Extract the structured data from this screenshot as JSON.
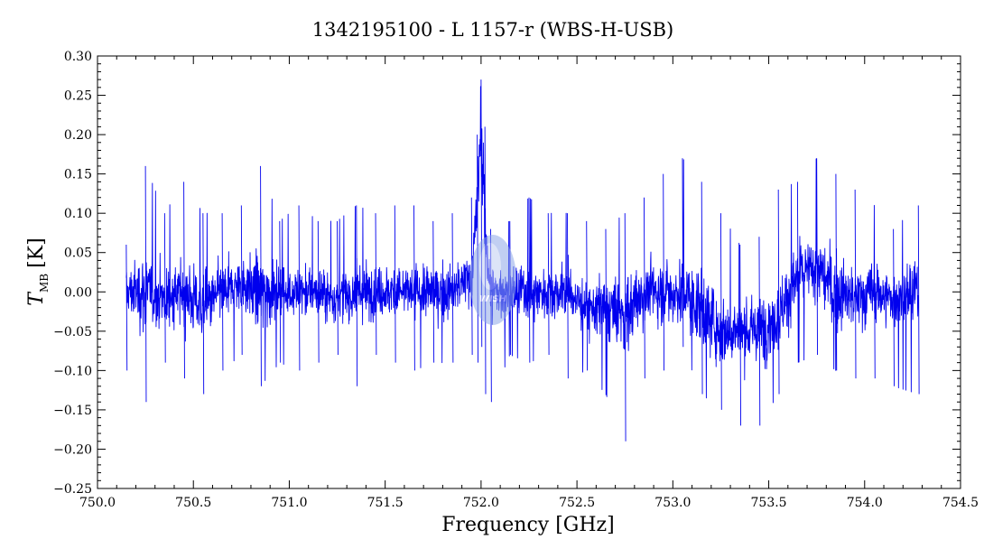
{
  "chart_data": {
    "type": "line",
    "title": "1342195100 - L 1157-r (WBS-H-USB)",
    "xlabel": "Frequency [GHz]",
    "ylabel_main": "T",
    "ylabel_sub": "MB",
    "ylabel_unit": "[K]",
    "xlim": [
      750.0,
      754.5
    ],
    "ylim": [
      -0.25,
      0.3
    ],
    "x_ticks": [
      750.0,
      750.5,
      751.0,
      751.5,
      752.0,
      752.5,
      753.0,
      753.5,
      754.0,
      754.5
    ],
    "x_tick_labels": [
      "750.0",
      "750.5",
      "751.0",
      "751.5",
      "752.0",
      "752.5",
      "753.0",
      "753.5",
      "754.0",
      "754.5"
    ],
    "y_ticks": [
      0.3,
      0.25,
      0.2,
      0.15,
      0.1,
      0.05,
      0.0,
      -0.05,
      -0.1,
      -0.15,
      -0.2,
      -0.25
    ],
    "y_tick_labels": [
      "0.30",
      "0.25",
      "0.20",
      "0.15",
      "0.10",
      "0.05",
      "0.00",
      "−0.05",
      "−0.10",
      "−0.15",
      "−0.20",
      "−0.25"
    ],
    "grid": false,
    "series": [
      {
        "color": "#0000ee",
        "x": [
          750.15,
          750.25,
          750.35,
          750.45,
          750.55,
          750.65,
          750.75,
          750.85,
          750.95,
          751.05,
          751.15,
          751.25,
          751.35,
          751.45,
          751.55,
          751.65,
          751.75,
          751.85,
          751.95,
          751.98,
          752.0,
          752.02,
          752.05,
          752.15,
          752.25,
          752.35,
          752.45,
          752.55,
          752.65,
          752.75,
          752.85,
          752.95,
          753.05,
          753.15,
          753.25,
          753.35,
          753.45,
          753.55,
          753.65,
          753.75,
          753.85,
          753.95,
          754.05,
          754.15,
          754.28
        ],
        "y_center": [
          0.0,
          0.0,
          -0.01,
          0.0,
          -0.02,
          0.0,
          0.01,
          0.0,
          0.0,
          0.0,
          0.0,
          -0.01,
          0.0,
          0.0,
          0.0,
          0.0,
          0.0,
          0.0,
          0.02,
          0.1,
          0.22,
          0.08,
          0.0,
          0.0,
          0.0,
          0.0,
          0.0,
          -0.02,
          -0.02,
          -0.03,
          0.0,
          0.0,
          0.0,
          -0.02,
          -0.05,
          -0.05,
          -0.05,
          -0.03,
          0.02,
          0.03,
          0.0,
          -0.01,
          0.0,
          -0.01,
          0.0
        ],
        "y_max": [
          0.06,
          0.16,
          0.1,
          0.14,
          0.1,
          0.1,
          0.11,
          0.16,
          0.09,
          0.11,
          0.09,
          0.09,
          0.11,
          0.1,
          0.11,
          0.11,
          0.09,
          0.1,
          0.12,
          0.2,
          0.27,
          0.21,
          0.08,
          0.09,
          0.12,
          0.1,
          0.1,
          0.09,
          0.08,
          0.1,
          0.12,
          0.15,
          0.17,
          0.14,
          0.1,
          0.06,
          0.07,
          0.13,
          0.14,
          0.17,
          0.15,
          0.13,
          0.11,
          0.08,
          0.11
        ],
        "y_min": [
          -0.1,
          -0.14,
          -0.09,
          -0.11,
          -0.13,
          -0.1,
          -0.08,
          -0.12,
          -0.09,
          -0.1,
          -0.09,
          -0.08,
          -0.12,
          -0.08,
          -0.09,
          -0.1,
          -0.09,
          -0.09,
          -0.08,
          -0.09,
          -0.07,
          -0.13,
          -0.14,
          -0.08,
          -0.09,
          -0.08,
          -0.11,
          -0.1,
          -0.13,
          -0.19,
          -0.11,
          -0.1,
          -0.07,
          -0.13,
          -0.15,
          -0.17,
          -0.17,
          -0.13,
          -0.09,
          -0.08,
          -0.1,
          -0.11,
          -0.11,
          -0.12,
          -0.13
        ]
      }
    ],
    "watermark_text": "WISH"
  }
}
